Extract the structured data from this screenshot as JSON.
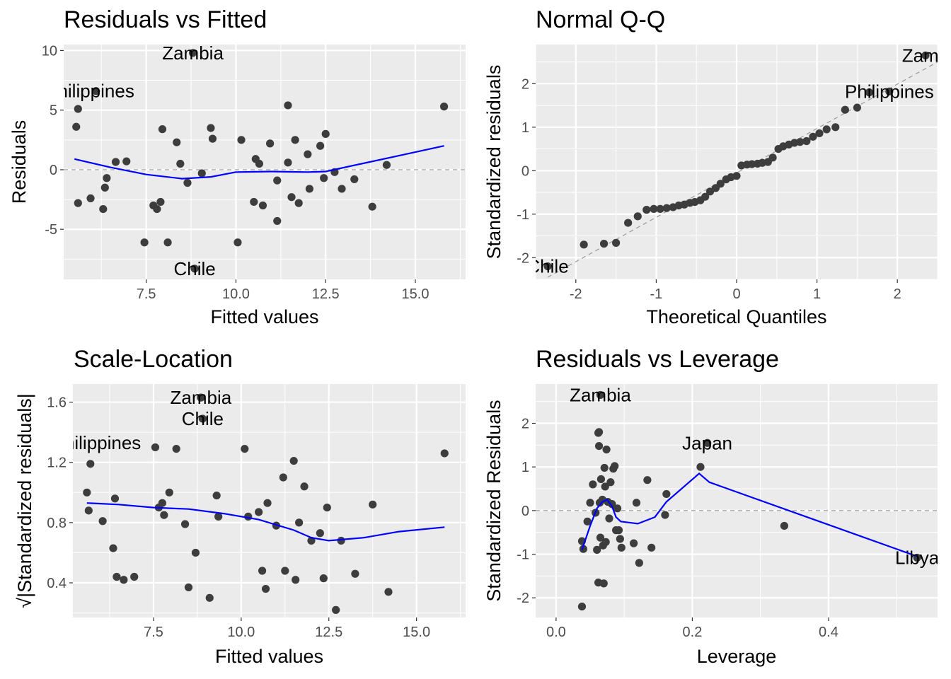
{
  "colors": {
    "panel_bg": "#ebebeb",
    "grid": "#ffffff",
    "points": "#3d3d3d",
    "smooth": "#0000ff",
    "ref_line": "#999999"
  },
  "chart_data": [
    {
      "type": "scatter",
      "title": "Residuals vs Fitted",
      "xlabel": "Fitted values",
      "ylabel": "Residuals",
      "xlim": [
        5.2,
        16.4
      ],
      "ylim": [
        -9.2,
        10.5
      ],
      "xticks": [
        7.5,
        10.0,
        12.5,
        15.0
      ],
      "xtick_labels": [
        "7.5",
        "10.0",
        "12.5",
        "15.0"
      ],
      "yticks": [
        -5,
        0,
        5,
        10
      ],
      "ytick_labels": [
        "-5",
        "0",
        "5",
        "10"
      ],
      "reference_line": 0,
      "points": [
        [
          5.55,
          3.6
        ],
        [
          5.6,
          5.1
        ],
        [
          5.6,
          -2.8
        ],
        [
          5.95,
          -2.4
        ],
        [
          6.1,
          6.6
        ],
        [
          6.3,
          -3.3
        ],
        [
          6.35,
          -1.5
        ],
        [
          6.4,
          -0.7
        ],
        [
          6.65,
          0.65
        ],
        [
          6.95,
          0.7
        ],
        [
          7.45,
          -6.1
        ],
        [
          7.7,
          -3.0
        ],
        [
          7.8,
          -3.3
        ],
        [
          7.9,
          -2.7
        ],
        [
          7.95,
          3.4
        ],
        [
          8.1,
          -6.1
        ],
        [
          8.35,
          2.3
        ],
        [
          8.45,
          0.5
        ],
        [
          8.65,
          -1.1
        ],
        [
          8.8,
          9.8
        ],
        [
          8.85,
          -8.3
        ],
        [
          9.05,
          -0.3
        ],
        [
          9.3,
          3.5
        ],
        [
          9.35,
          2.6
        ],
        [
          10.05,
          -6.1
        ],
        [
          10.15,
          2.5
        ],
        [
          10.5,
          -2.7
        ],
        [
          10.55,
          0.9
        ],
        [
          10.65,
          0.5
        ],
        [
          10.75,
          -3.0
        ],
        [
          10.95,
          2.2
        ],
        [
          11.15,
          -0.9
        ],
        [
          11.15,
          -4.3
        ],
        [
          11.45,
          5.4
        ],
        [
          11.45,
          0.6
        ],
        [
          11.55,
          -2.3
        ],
        [
          11.65,
          2.5
        ],
        [
          11.75,
          -2.8
        ],
        [
          12.0,
          1.3
        ],
        [
          12.05,
          -1.6
        ],
        [
          12.35,
          2.0
        ],
        [
          12.45,
          -0.7
        ],
        [
          12.5,
          3.0
        ],
        [
          12.75,
          -0.2
        ],
        [
          12.95,
          -1.6
        ],
        [
          13.3,
          -0.8
        ],
        [
          13.8,
          -3.1
        ],
        [
          14.2,
          0.4
        ],
        [
          15.8,
          5.3
        ]
      ],
      "smooth": [
        [
          5.5,
          0.9
        ],
        [
          6.5,
          0.2
        ],
        [
          7.5,
          -0.4
        ],
        [
          8.5,
          -0.75
        ],
        [
          9.3,
          -0.6
        ],
        [
          10.0,
          -0.2
        ],
        [
          11.0,
          -0.15
        ],
        [
          12.0,
          -0.2
        ],
        [
          12.5,
          -0.15
        ],
        [
          13.5,
          0.5
        ],
        [
          14.5,
          1.15
        ],
        [
          15.8,
          2.0
        ]
      ],
      "annotations": [
        {
          "text": "Zambia",
          "x": 8.8,
          "y": 9.8
        },
        {
          "text": "hilippines",
          "x": 6.1,
          "y": 6.6
        },
        {
          "text": "Chile",
          "x": 8.85,
          "y": -8.3
        }
      ]
    },
    {
      "type": "scatter",
      "title": "Normal Q-Q",
      "xlabel": "Theoretical Quantiles",
      "ylabel": "Standardized residuals",
      "xlim": [
        -2.5,
        2.5
      ],
      "ylim": [
        -2.5,
        2.9
      ],
      "xticks": [
        -2,
        -1,
        0,
        1,
        2
      ],
      "xtick_labels": [
        "-2",
        "-1",
        "0",
        "1",
        "2"
      ],
      "yticks": [
        -2,
        -1,
        0,
        1,
        2
      ],
      "ytick_labels": [
        "-2",
        "-1",
        "0",
        "1",
        "2"
      ],
      "reference_line_points": [
        [
          -2.35,
          -2.45
        ],
        [
          2.5,
          2.5
        ]
      ],
      "points": [
        [
          -2.35,
          -2.2
        ],
        [
          -1.9,
          -1.7
        ],
        [
          -1.65,
          -1.68
        ],
        [
          -1.5,
          -1.66
        ],
        [
          -1.35,
          -1.2
        ],
        [
          -1.23,
          -1.05
        ],
        [
          -1.12,
          -0.9
        ],
        [
          -1.03,
          -0.88
        ],
        [
          -0.95,
          -0.88
        ],
        [
          -0.87,
          -0.86
        ],
        [
          -0.79,
          -0.84
        ],
        [
          -0.72,
          -0.8
        ],
        [
          -0.65,
          -0.78
        ],
        [
          -0.58,
          -0.74
        ],
        [
          -0.52,
          -0.72
        ],
        [
          -0.45,
          -0.68
        ],
        [
          -0.39,
          -0.6
        ],
        [
          -0.33,
          -0.48
        ],
        [
          -0.26,
          -0.4
        ],
        [
          -0.2,
          -0.3
        ],
        [
          -0.13,
          -0.2
        ],
        [
          -0.07,
          -0.15
        ],
        [
          0.0,
          -0.12
        ],
        [
          0.06,
          0.12
        ],
        [
          0.13,
          0.14
        ],
        [
          0.19,
          0.15
        ],
        [
          0.26,
          0.16
        ],
        [
          0.32,
          0.18
        ],
        [
          0.39,
          0.2
        ],
        [
          0.45,
          0.3
        ],
        [
          0.52,
          0.5
        ],
        [
          0.58,
          0.56
        ],
        [
          0.65,
          0.6
        ],
        [
          0.72,
          0.64
        ],
        [
          0.79,
          0.66
        ],
        [
          0.87,
          0.68
        ],
        [
          0.95,
          0.78
        ],
        [
          1.03,
          0.86
        ],
        [
          1.12,
          0.95
        ],
        [
          1.23,
          1.0
        ],
        [
          1.35,
          1.4
        ],
        [
          1.5,
          1.45
        ],
        [
          1.65,
          1.8
        ],
        [
          1.9,
          1.82
        ],
        [
          2.35,
          2.65
        ]
      ],
      "annotations": [
        {
          "text": "Zamb",
          "x": 2.35,
          "y": 2.65
        },
        {
          "text": "Philippines",
          "x": 1.9,
          "y": 1.82
        },
        {
          "text": "Chile",
          "x": -2.35,
          "y": -2.2
        }
      ]
    },
    {
      "type": "scatter",
      "title": "Scale-Location",
      "xlabel": "Fitted values",
      "ylabel": "√|Standardized residuals|",
      "xlim": [
        5.2,
        16.4
      ],
      "ylim": [
        0.17,
        1.72
      ],
      "xticks": [
        7.5,
        10.0,
        12.5,
        15.0
      ],
      "xtick_labels": [
        "7.5",
        "10.0",
        "12.5",
        "15.0"
      ],
      "yticks": [
        0.4,
        0.8,
        1.2,
        1.6
      ],
      "ytick_labels": [
        "0.4",
        "0.8",
        "1.2",
        "1.6"
      ],
      "points": [
        [
          5.6,
          1.0
        ],
        [
          5.65,
          0.88
        ],
        [
          5.7,
          1.19
        ],
        [
          6.05,
          0.81
        ],
        [
          6.35,
          0.63
        ],
        [
          6.4,
          0.96
        ],
        [
          6.45,
          0.44
        ],
        [
          6.65,
          0.42
        ],
        [
          6.95,
          0.44
        ],
        [
          7.55,
          1.3
        ],
        [
          7.65,
          0.9
        ],
        [
          7.75,
          0.93
        ],
        [
          7.8,
          0.85
        ],
        [
          7.95,
          1.0
        ],
        [
          8.15,
          1.29
        ],
        [
          8.4,
          0.79
        ],
        [
          8.5,
          0.37
        ],
        [
          8.7,
          0.6
        ],
        [
          8.85,
          1.63
        ],
        [
          8.9,
          1.49
        ],
        [
          9.1,
          0.3
        ],
        [
          9.3,
          0.98
        ],
        [
          9.35,
          0.84
        ],
        [
          10.1,
          1.29
        ],
        [
          10.2,
          0.84
        ],
        [
          10.5,
          0.87
        ],
        [
          10.6,
          0.48
        ],
        [
          10.7,
          0.36
        ],
        [
          10.75,
          0.93
        ],
        [
          11.0,
          0.78
        ],
        [
          11.2,
          1.1
        ],
        [
          11.25,
          0.48
        ],
        [
          11.5,
          1.21
        ],
        [
          11.55,
          0.42
        ],
        [
          11.65,
          0.8
        ],
        [
          11.8,
          1.04
        ],
        [
          12.0,
          0.68
        ],
        [
          12.25,
          0.73
        ],
        [
          12.35,
          0.43
        ],
        [
          12.45,
          0.9
        ],
        [
          12.7,
          0.22
        ],
        [
          12.85,
          0.68
        ],
        [
          13.25,
          0.46
        ],
        [
          13.75,
          0.92
        ],
        [
          14.2,
          0.34
        ],
        [
          15.8,
          1.26
        ]
      ],
      "smooth": [
        [
          5.6,
          0.93
        ],
        [
          6.5,
          0.92
        ],
        [
          7.5,
          0.9
        ],
        [
          8.5,
          0.89
        ],
        [
          9.5,
          0.86
        ],
        [
          10.5,
          0.82
        ],
        [
          11.5,
          0.75
        ],
        [
          12.0,
          0.7
        ],
        [
          12.5,
          0.68
        ],
        [
          13.5,
          0.7
        ],
        [
          14.5,
          0.74
        ],
        [
          15.8,
          0.77
        ]
      ],
      "annotations": [
        {
          "text": "Zambia",
          "x": 8.85,
          "y": 1.63
        },
        {
          "text": "Chile",
          "x": 8.9,
          "y": 1.49
        },
        {
          "text": "hilippines",
          "x": 6.05,
          "y": 1.33
        }
      ]
    },
    {
      "type": "scatter",
      "title": "Residuals vs Leverage",
      "xlabel": "Leverage",
      "ylabel": "Standardized Residuals",
      "xlim": [
        -0.03,
        0.56
      ],
      "ylim": [
        -2.45,
        2.9
      ],
      "xticks": [
        0.0,
        0.2,
        0.4
      ],
      "xtick_labels": [
        "0.0",
        "0.2",
        "0.4"
      ],
      "yticks": [
        -2,
        -1,
        0,
        1,
        2
      ],
      "ytick_labels": [
        "-2",
        "-1",
        "0",
        "1",
        "2"
      ],
      "reference_line": 0,
      "points": [
        [
          0.038,
          -2.2
        ],
        [
          0.038,
          -0.7
        ],
        [
          0.04,
          -0.88
        ],
        [
          0.046,
          -0.25
        ],
        [
          0.05,
          0.18
        ],
        [
          0.054,
          0.6
        ],
        [
          0.058,
          -0.05
        ],
        [
          0.06,
          -0.9
        ],
        [
          0.062,
          -1.65
        ],
        [
          0.062,
          1.78
        ],
        [
          0.063,
          1.8
        ],
        [
          0.063,
          1.48
        ],
        [
          0.064,
          0.18
        ],
        [
          0.065,
          -0.62
        ],
        [
          0.065,
          2.65
        ],
        [
          0.066,
          0.72
        ],
        [
          0.068,
          0.25
        ],
        [
          0.069,
          -0.8
        ],
        [
          0.07,
          -1.67
        ],
        [
          0.071,
          0.98
        ],
        [
          0.072,
          0.55
        ],
        [
          0.073,
          -0.72
        ],
        [
          0.074,
          1.4
        ],
        [
          0.076,
          0.2
        ],
        [
          0.078,
          -0.18
        ],
        [
          0.08,
          0.65
        ],
        [
          0.082,
          0.15
        ],
        [
          0.084,
          0.96
        ],
        [
          0.086,
          1.02
        ],
        [
          0.088,
          -0.45
        ],
        [
          0.09,
          0.05
        ],
        [
          0.092,
          -0.45
        ],
        [
          0.094,
          -0.65
        ],
        [
          0.096,
          -0.85
        ],
        [
          0.114,
          -0.75
        ],
        [
          0.118,
          0.18
        ],
        [
          0.122,
          -1.2
        ],
        [
          0.134,
          0.7
        ],
        [
          0.14,
          -0.85
        ],
        [
          0.16,
          -0.1
        ],
        [
          0.162,
          0.38
        ],
        [
          0.212,
          1.0
        ],
        [
          0.222,
          1.55
        ],
        [
          0.335,
          -0.35
        ],
        [
          0.53,
          -1.08
        ]
      ],
      "smooth": [
        [
          0.038,
          -0.9
        ],
        [
          0.05,
          -0.35
        ],
        [
          0.06,
          0.05
        ],
        [
          0.068,
          0.2
        ],
        [
          0.075,
          0.25
        ],
        [
          0.082,
          0.1
        ],
        [
          0.088,
          -0.15
        ],
        [
          0.095,
          -0.25
        ],
        [
          0.12,
          -0.3
        ],
        [
          0.145,
          -0.15
        ],
        [
          0.162,
          0.2
        ],
        [
          0.21,
          0.85
        ],
        [
          0.225,
          0.65
        ],
        [
          0.53,
          -1.05
        ]
      ],
      "annotations": [
        {
          "text": "Zambia",
          "x": 0.065,
          "y": 2.65
        },
        {
          "text": "Japan",
          "x": 0.222,
          "y": 1.55
        },
        {
          "text": "Libya",
          "x": 0.53,
          "y": -1.08
        }
      ]
    }
  ]
}
